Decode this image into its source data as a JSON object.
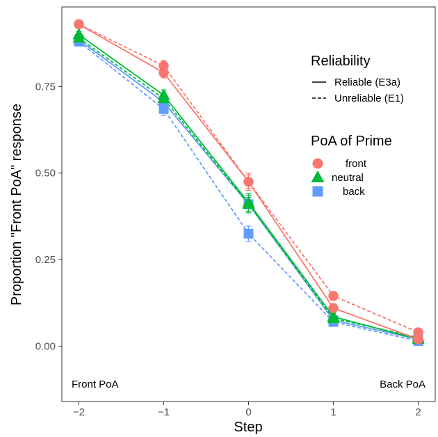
{
  "chart_data": {
    "type": "line",
    "xlabel": "Step",
    "ylabel": "Proportion \"Front PoA\" response",
    "x": [
      -2,
      -1,
      0,
      1,
      2
    ],
    "x_tick_labels": [
      "−2",
      "−1",
      "0",
      "1",
      "2"
    ],
    "xlim": [
      -2.2,
      2.2
    ],
    "ylim": [
      -0.16,
      0.98
    ],
    "y_ticks": [
      0.0,
      0.25,
      0.5,
      0.75
    ],
    "y_tick_labels": [
      "0.00",
      "0.25",
      "0.50",
      "0.75"
    ],
    "grid": false,
    "annotations": [
      {
        "text": "Front PoA",
        "position": "bottom-left"
      },
      {
        "text": "Back PoA",
        "position": "bottom-right"
      }
    ],
    "legends": {
      "placement": "top-right",
      "reliability": {
        "title": "Reliability",
        "entries": [
          {
            "label": "Reliable (E3a)",
            "linetype": "solid"
          },
          {
            "label": "Unreliable (E1)",
            "linetype": "dashed"
          }
        ]
      },
      "prime": {
        "title": "PoA of Prime",
        "entries": [
          {
            "label": "front",
            "shape": "circle",
            "color": "#F8766D"
          },
          {
            "label": "neutral",
            "shape": "triangle",
            "color": "#00BA38"
          },
          {
            "label": "back",
            "shape": "square",
            "color": "#619CFF"
          }
        ]
      }
    },
    "series": [
      {
        "prime": "front",
        "reliability": "Reliable (E3a)",
        "linetype": "solid",
        "color": "#F8766D",
        "shape": "circle",
        "values": [
          0.93,
          0.79,
          0.475,
          0.11,
          0.02
        ],
        "error": [
          0.008,
          0.015,
          0.02,
          0.012,
          0.005
        ]
      },
      {
        "prime": "front",
        "reliability": "Unreliable (E1)",
        "linetype": "dashed",
        "color": "#F8766D",
        "shape": "circle",
        "values": [
          0.93,
          0.81,
          0.475,
          0.145,
          0.04
        ],
        "error": [
          0.008,
          0.015,
          0.025,
          0.012,
          0.006
        ]
      },
      {
        "prime": "neutral",
        "reliability": "Reliable (E3a)",
        "linetype": "solid",
        "color": "#00BA38",
        "shape": "triangle",
        "values": [
          0.9,
          0.725,
          0.415,
          0.085,
          0.02
        ],
        "error": [
          0.01,
          0.015,
          0.025,
          0.01,
          0.005
        ]
      },
      {
        "prime": "neutral",
        "reliability": "Unreliable (E1)",
        "linetype": "dashed",
        "color": "#00BA38",
        "shape": "triangle",
        "values": [
          0.89,
          0.715,
          0.41,
          0.08,
          0.025
        ],
        "error": [
          0.01,
          0.015,
          0.025,
          0.01,
          0.005
        ]
      },
      {
        "prime": "back",
        "reliability": "Reliable (E3a)",
        "linetype": "solid",
        "color": "#619CFF",
        "shape": "square",
        "values": [
          0.885,
          0.705,
          0.41,
          0.075,
          0.02
        ],
        "error": [
          0.01,
          0.015,
          0.02,
          0.01,
          0.005
        ]
      },
      {
        "prime": "back",
        "reliability": "Unreliable (E1)",
        "linetype": "dashed",
        "color": "#619CFF",
        "shape": "square",
        "values": [
          0.88,
          0.685,
          0.325,
          0.07,
          0.015
        ],
        "error": [
          0.01,
          0.018,
          0.022,
          0.01,
          0.005
        ]
      }
    ]
  }
}
